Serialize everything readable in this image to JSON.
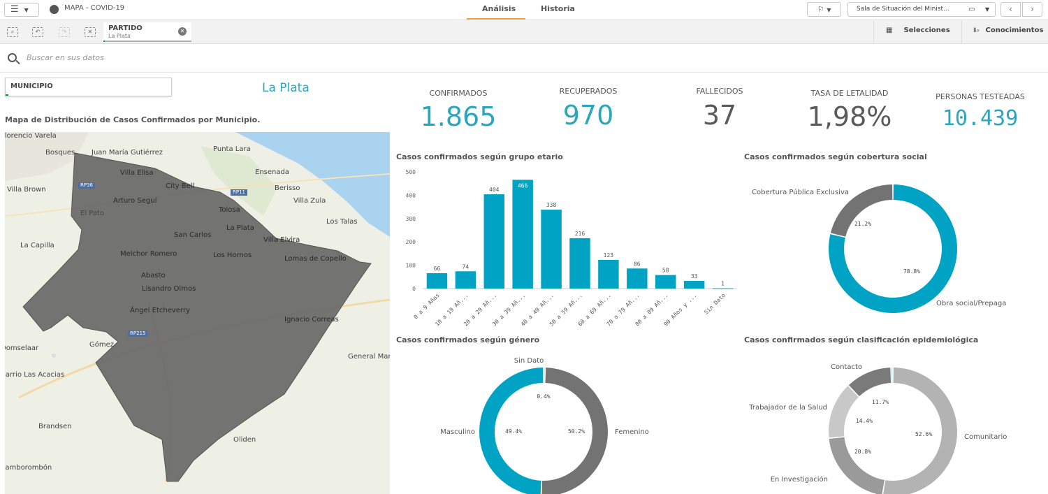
{
  "topbar": {
    "app_title": "MAPA - COVID-19",
    "tabs": [
      {
        "label": "Análisis",
        "active": true
      },
      {
        "label": "Historia",
        "active": false
      }
    ],
    "sheet_name": "Sala de Situación del Minist...",
    "menu_icon": "hamburger-icon",
    "bookmark_icon": "bookmark-icon"
  },
  "selections": {
    "field": "PARTIDO",
    "value": "La Plata",
    "selecciones_label": "Selecciones",
    "conocimientos_label": "Conocimientos"
  },
  "search": {
    "placeholder": "Buscar en sus datos"
  },
  "filter": {
    "label": "MUNICIPIO",
    "selected_title": "La Plata"
  },
  "map": {
    "title": "Mapa de Distribución de Casos Confirmados por Municipio.",
    "place_labels": [
      "Florencio Varela",
      "Bosques",
      "Juan María Gutiérrez",
      "Punta Lara",
      "Villa Elisa",
      "Ensenada",
      "City Bell",
      "Berisso",
      "Villa Brown",
      "Arturo Seguí",
      "Villa Zula",
      "El Pato",
      "Tolosa",
      "Los Talas",
      "San Carlos",
      "La Plata",
      "La Capilla",
      "Villa Elvira",
      "Melchor Romero",
      "Los Hornos",
      "Lomas de Copello",
      "Abasto",
      "Lisandro Olmos",
      "Ángel Etcheverry",
      "Ignacio Correas",
      "Gómez",
      "General Mansilla",
      "Domselaar",
      "Barrio Las Acacias",
      "Brandsen",
      "Oliden",
      "Samborombón"
    ],
    "road_badges": [
      "RP36",
      "RP11",
      "RP215"
    ],
    "colors": {
      "water": "#aad3ef",
      "land": "#eef0e6",
      "polygon": "#6b6b6b"
    }
  },
  "kpis": [
    {
      "label": "CONFIRMADOS",
      "value": "1.865",
      "color": "#2aa6bd"
    },
    {
      "label": "RECUPERADOS",
      "value": "970",
      "color": "#2aa6bd"
    },
    {
      "label": "FALLECIDOS",
      "value": "37",
      "color": "#5a5a5a"
    },
    {
      "label": "TASA DE LETALIDAD",
      "value": "1,98%",
      "color": "#5a5a5a"
    },
    {
      "label": "PERSONAS TESTEADAS",
      "value": "10.439",
      "color": "#2aa6bd"
    }
  ],
  "chart_data": [
    {
      "type": "bar",
      "title": "Casos confirmados según grupo etario",
      "categories": [
        "0 a 9 Años",
        "10 a 19 Añ...",
        "20 a 29 Añ...",
        "30 a 39 Añ...",
        "40 a 49 Añ...",
        "50 a 59 Añ...",
        "60 a 69 Añ...",
        "70 a 79 Añ...",
        "80 a 89 Añ...",
        "90 Años y ...",
        "Sin Dato"
      ],
      "values": [
        66,
        74,
        404,
        466,
        338,
        216,
        123,
        86,
        58,
        33,
        1
      ],
      "ylim": [
        0,
        500
      ],
      "yticks": [
        0,
        100,
        200,
        300,
        400,
        500
      ],
      "color": "#00a3c4"
    },
    {
      "type": "pie",
      "title": "Casos confirmados según cobertura social",
      "slices": [
        {
          "label": "Obra social/Prepaga",
          "value": 78.8,
          "pct_label": "78.8%",
          "color": "#00a3c4"
        },
        {
          "label": "Cobertura Pública Exclusiva",
          "value": 21.2,
          "pct_label": "21.2%",
          "color": "#737373"
        }
      ]
    },
    {
      "type": "pie",
      "title": "Casos confirmados según género",
      "slices": [
        {
          "label": "Sin Dato",
          "value": 0.4,
          "pct_label": "0.4%",
          "color": "#b0b0b0"
        },
        {
          "label": "Femenino",
          "value": 50.2,
          "pct_label": "50.2%",
          "color": "#737373"
        },
        {
          "label": "Masculino",
          "value": 49.4,
          "pct_label": "49.4%",
          "color": "#00a3c4"
        }
      ]
    },
    {
      "type": "pie",
      "title": "Casos confirmados según clasificación epidemiológica",
      "slices": [
        {
          "label": "Comunitario",
          "value": 52.6,
          "pct_label": "52.6%",
          "color": "#b3b3b3"
        },
        {
          "label": "En Investigación",
          "value": 20.8,
          "pct_label": "20.8%",
          "color": "#9a9a9a"
        },
        {
          "label": "Trabajador de la Salud",
          "value": 14.4,
          "pct_label": "14.4%",
          "color": "#c8c8c8"
        },
        {
          "label": "Contacto",
          "value": 11.7,
          "pct_label": "11.7%",
          "color": "#7a7a7a"
        },
        {
          "label": "",
          "value": 0.5,
          "pct_label": "",
          "color": "#a8dce6"
        }
      ]
    }
  ]
}
